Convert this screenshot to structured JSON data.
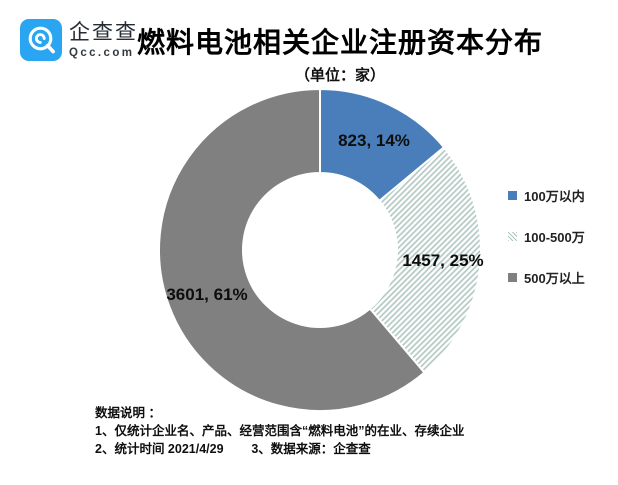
{
  "brand": {
    "name": "企查查",
    "domain": "Qcc.com"
  },
  "header": {
    "title": "燃料电池相关企业注册资本分布",
    "subtitle": "（单位：家）"
  },
  "chart_data": {
    "type": "pie",
    "donut": true,
    "title": "燃料电池相关企业注册资本分布",
    "unit_note": "（单位：家）",
    "categories": [
      "100万以内",
      "100-500万",
      "500万以上"
    ],
    "values": [
      823,
      1457,
      3601
    ],
    "percents": [
      14,
      25,
      61
    ],
    "percent_labels": [
      "823, 14%",
      "1457, 25%",
      "3601, 61%"
    ],
    "colors": [
      "#4A7EBB",
      "hatch",
      "#808080"
    ],
    "hatch_line_color": "#AFC6C0",
    "slice_border_color": "#FFFFFF",
    "start_angle_deg": 0,
    "direction": "clockwise",
    "inner_radius_ratio": 0.48,
    "legend_position": "right"
  },
  "legend": {
    "items": [
      {
        "label": "100万以内",
        "swatch": "solid-blue"
      },
      {
        "label": "100-500万",
        "swatch": "hatch"
      },
      {
        "label": "500万以上",
        "swatch": "solid-gray"
      }
    ]
  },
  "footer": {
    "heading": "数据说明 ：",
    "line1": "1、仅统计企业名、产品、经营范围含“燃料电池”的在业、存续企业",
    "line2": "2、统计时间 2021/4/29        3、数据来源：企查查"
  },
  "colors": {
    "logo_blue": "#29A5F1",
    "text_dark": "#1A1A1A"
  }
}
